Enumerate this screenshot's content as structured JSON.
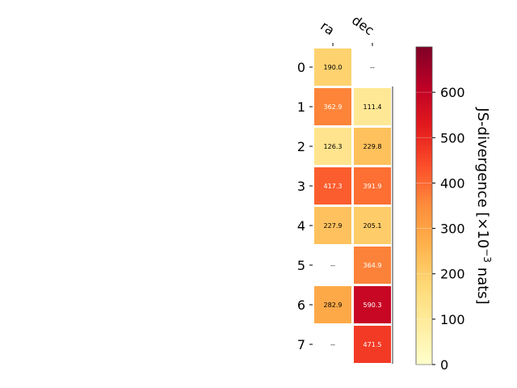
{
  "chart_data": {
    "type": "heatmap",
    "columns": [
      "ra",
      "dec"
    ],
    "rows": [
      "0",
      "1",
      "2",
      "3",
      "4",
      "5",
      "6",
      "7"
    ],
    "values": [
      [
        190.0,
        null
      ],
      [
        362.9,
        111.4
      ],
      [
        126.3,
        229.8
      ],
      [
        417.3,
        391.9
      ],
      [
        227.9,
        205.1
      ],
      [
        null,
        364.9
      ],
      [
        282.9,
        590.3
      ],
      [
        null,
        471.5
      ]
    ],
    "missing_label": "--",
    "colorbar": {
      "label_main": "JS-divergence [×10",
      "label_exp": "−3",
      "label_end": " nats]",
      "range": [
        0,
        700
      ],
      "ticks": [
        0,
        100,
        200,
        300,
        400,
        500,
        600
      ],
      "colormap": "YlOrRd"
    }
  }
}
